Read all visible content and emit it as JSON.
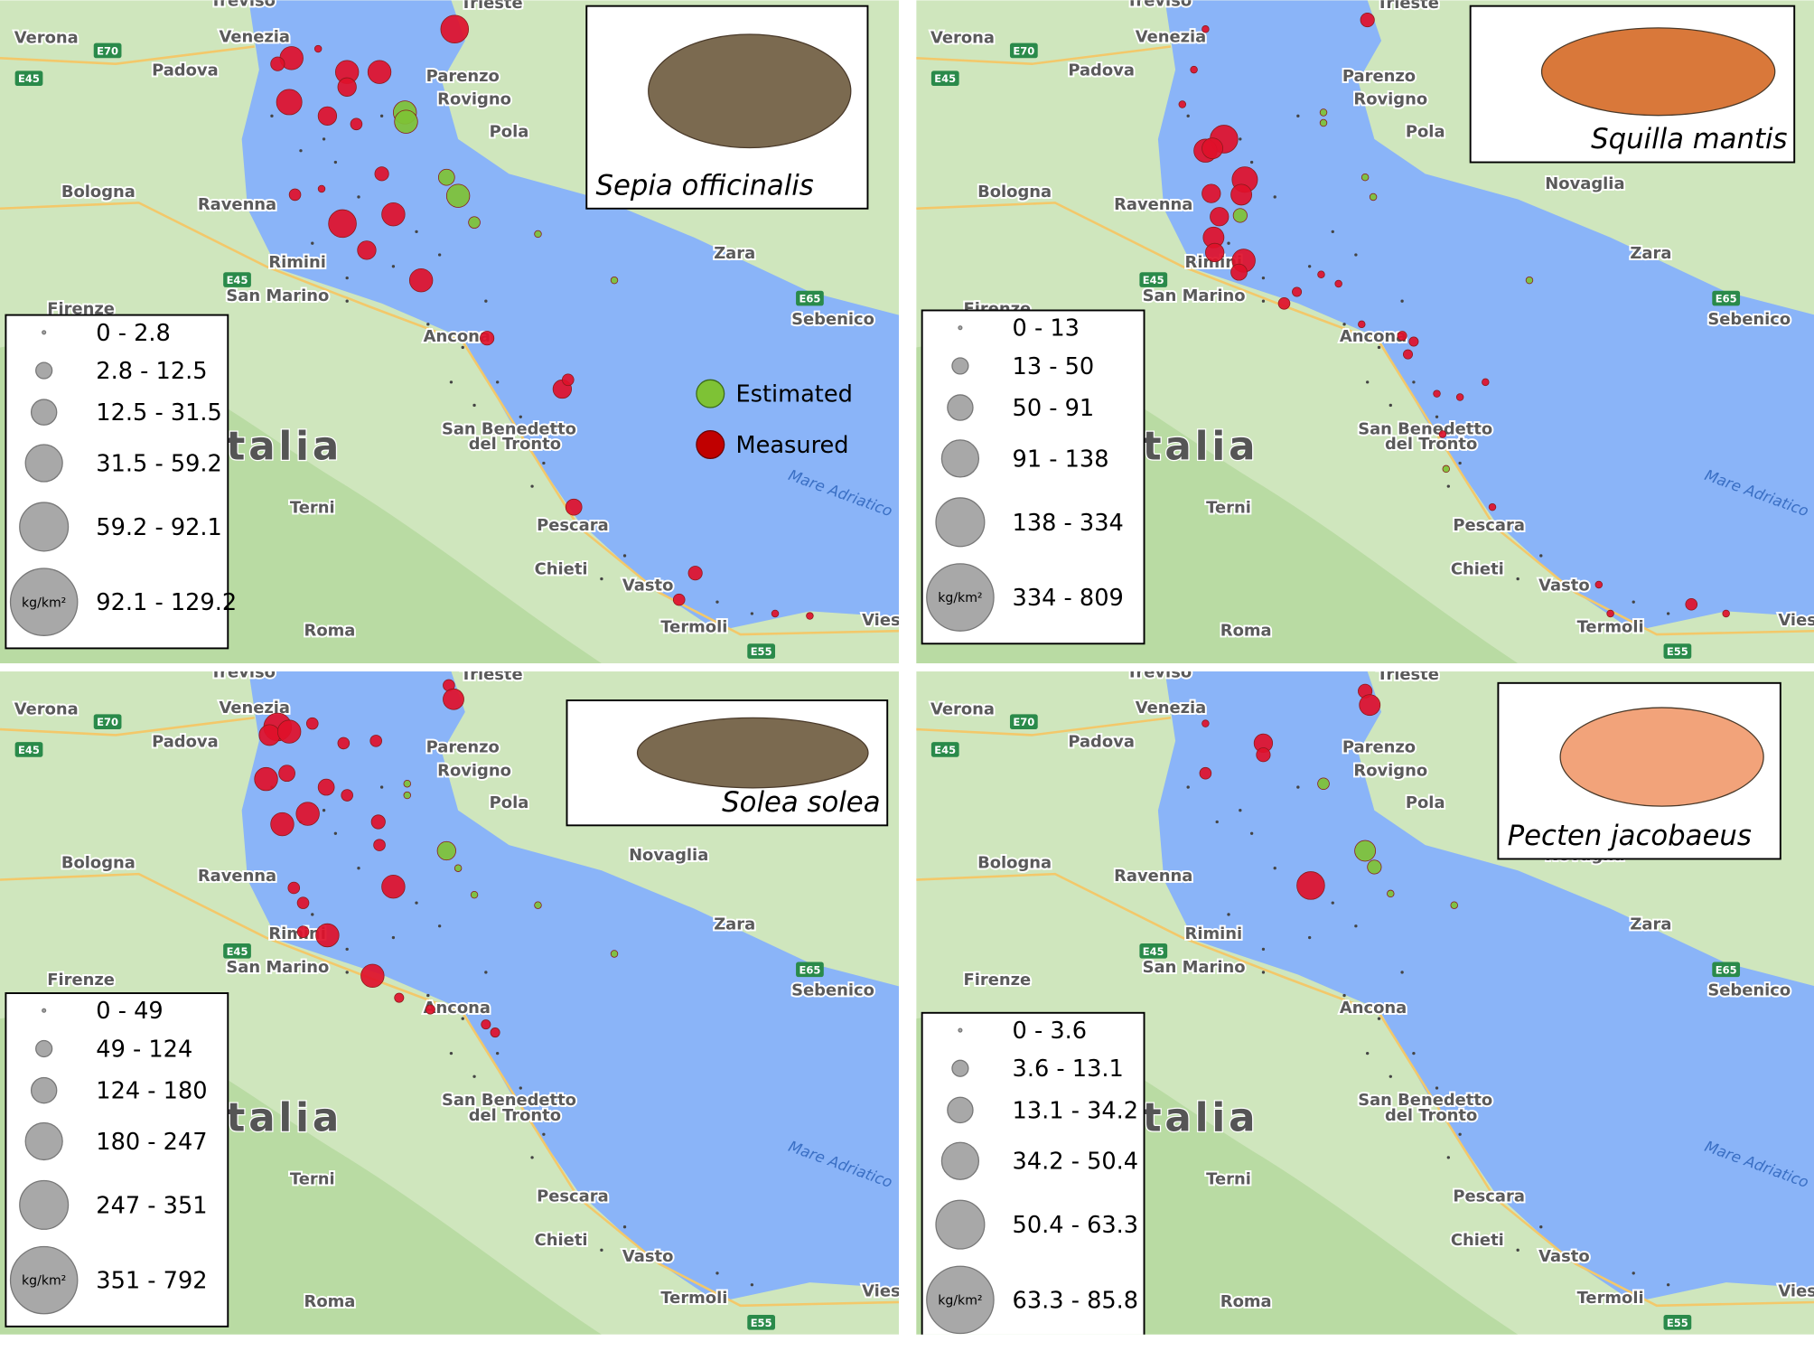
{
  "places": [
    "Treviso",
    "Verona",
    "Venezia",
    "Padova",
    "Trieste",
    "Parenzo",
    "Rovigno",
    "Pola",
    "Bologna",
    "Ravenna",
    "Rimini",
    "San Marino",
    "Firenze",
    "Zara",
    "Sebenico",
    "Ancona",
    "San Benedetto",
    "del Tronto",
    "Terni",
    "Pescara",
    "Chieti",
    "Vasto",
    "Termoli",
    "Roma",
    "Mare Adriatico",
    "Italia",
    "Novaglia",
    "Viest"
  ],
  "roads": [
    "E70",
    "E45",
    "E45",
    "E65",
    "E55"
  ],
  "key": {
    "estimated": "Estimated",
    "measured": "Measured"
  },
  "panels": [
    {
      "species": "Sepia officinalis",
      "unit": "kg/km²",
      "legend": [
        "0 - 2.8",
        "2.8 - 12.5",
        "12.5 - 31.5",
        "31.5 - 59.2",
        "59.2 - 92.1",
        "92.1 - 129.2"
      ]
    },
    {
      "species": "Squilla mantis",
      "unit": "kg/km²",
      "legend": [
        "0 - 13",
        "13 - 50",
        "50 - 91",
        "91 - 138",
        "138 - 334",
        "334 - 809"
      ]
    },
    {
      "species": "Solea solea",
      "unit": "kg/km²",
      "legend": [
        "0 - 49",
        "49 - 124",
        "124 - 180",
        "180 - 247",
        "247 - 351",
        "351 - 792"
      ]
    },
    {
      "species": "Pecten jacobaeus",
      "unit": "kg/km²",
      "legend": [
        "0 - 3.6",
        "3.6 - 13.1",
        "13.1 - 34.2",
        "34.2 - 50.4",
        "50.4 - 63.3",
        "63.3 - 85.8"
      ]
    }
  ]
}
